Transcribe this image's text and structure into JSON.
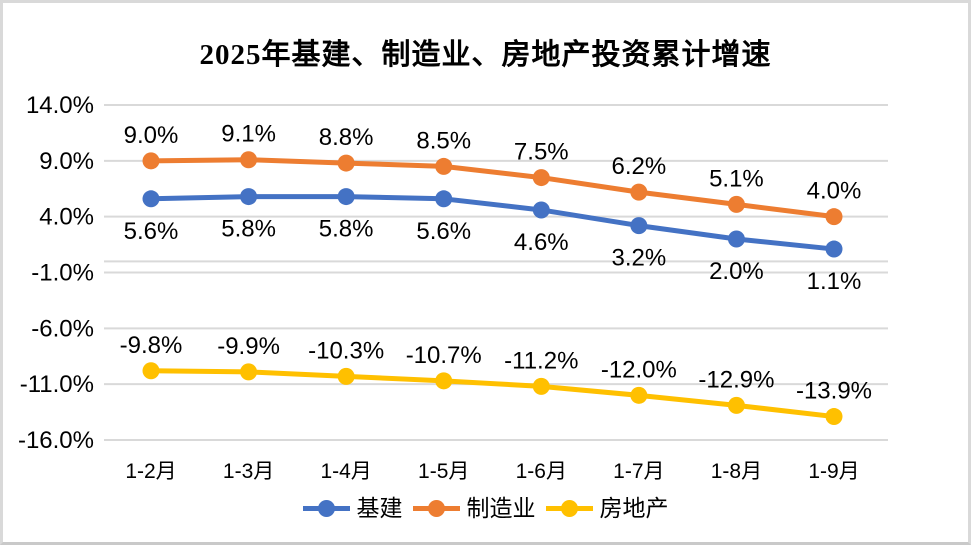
{
  "page": {
    "background_color": "#ffffff",
    "frame_border_color": "#d9d9d9"
  },
  "chart_data": {
    "type": "line",
    "title": "2025年基建、制造业、房地产投资累计增速",
    "categories": [
      "1-2月",
      "1-3月",
      "1-4月",
      "1-5月",
      "1-6月",
      "1-7月",
      "1-8月",
      "1-9月"
    ],
    "series": [
      {
        "name": "制造业",
        "color": "#ED7D31",
        "values": [
          9.0,
          9.1,
          8.8,
          8.5,
          7.5,
          6.2,
          5.1,
          4.0
        ],
        "labels": [
          "9.0%",
          "9.1%",
          "8.8%",
          "8.5%",
          "7.5%",
          "6.2%",
          "5.1%",
          "4.0%"
        ],
        "label_position": "above"
      },
      {
        "name": "基建",
        "color": "#4472C4",
        "values": [
          5.6,
          5.8,
          5.8,
          5.6,
          4.6,
          3.2,
          2.0,
          1.1
        ],
        "labels": [
          "5.6%",
          "5.8%",
          "5.8%",
          "5.6%",
          "4.6%",
          "3.2%",
          "2.0%",
          "1.1%"
        ],
        "label_position": "below"
      },
      {
        "name": "房地产",
        "color": "#FFC000",
        "values": [
          -9.8,
          -9.9,
          -10.3,
          -10.7,
          -11.2,
          -12.0,
          -12.9,
          -13.9
        ],
        "labels": [
          "-9.8%",
          "-9.9%",
          "-10.3%",
          "-10.7%",
          "-11.2%",
          "-12.0%",
          "-12.9%",
          "-13.9%"
        ],
        "label_position": "above"
      }
    ],
    "legend_order": [
      "基建",
      "制造业",
      "房地产"
    ],
    "y_axis": {
      "ticks": [
        {
          "label": "14.0%",
          "value": 14
        },
        {
          "label": "9.0%",
          "value": 9
        },
        {
          "label": "4.0%",
          "value": 4
        },
        {
          "label": "-1.0%",
          "value": -1
        },
        {
          "label": "-6.0%",
          "value": -6
        },
        {
          "label": "-11.0%",
          "value": -11
        },
        {
          "label": "-16.0%",
          "value": -16
        }
      ],
      "min": -16,
      "max": 14
    },
    "grid": true,
    "gridline_color": "#D9D9D9",
    "zero_line_value": 0,
    "legend_position": "bottom",
    "label_color": "#000000"
  }
}
